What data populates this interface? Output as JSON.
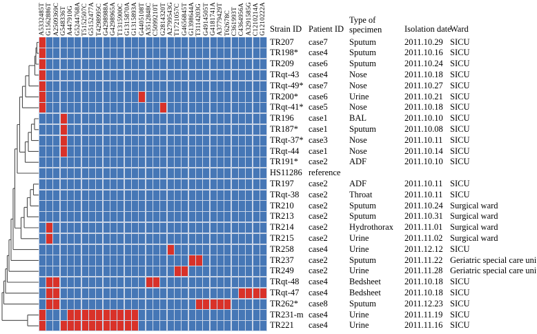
{
  "chart_data": {
    "type": "heatmap",
    "title": "",
    "colors": {
      "present": "#d93229",
      "absent": "#4677b6",
      "grid": "#c9d4e6",
      "dendrogram": "#4a4a4a",
      "text": "#000000"
    },
    "value_encoding": {
      "red": "SNP present",
      "blue": "SNP absent"
    },
    "snp_columns": [
      "A5332485T",
      "G1562886T",
      "A2509369C",
      "G548336T",
      "A447910G",
      "G5244768A",
      "T5152507C",
      "G5152477A",
      "T4298995C",
      "G4298988A",
      "G4298965A",
      "T1315900C",
      "G1315870A",
      "G1315893A",
      "G4405108T",
      "A3512848C",
      "C5099210T",
      "G2814320T",
      "A2799543G",
      "T1721057C",
      "G4656845T",
      "G1398644A",
      "T3114203G",
      "G4914505T",
      "G4181741A",
      "A3779429T",
      "T62678C",
      "C361993T",
      "C4364956A",
      "A3291585G",
      "C1210214A",
      "G1210222A"
    ],
    "table_headers": {
      "strain": "Strain ID",
      "patient": "Patient ID",
      "specimen_l1": "Type of",
      "specimen_l2": "specimen",
      "date": "Isolation date",
      "ward": "Ward"
    },
    "rows": [
      {
        "strain": "TR207",
        "patient": "case7",
        "specimen": "Sputum",
        "date": "2011.10.29",
        "ward": "SICU",
        "red_cols": [
          0
        ]
      },
      {
        "strain": "TR198*",
        "patient": "case4",
        "specimen": "Sputum",
        "date": "2011.10.16",
        "ward": "SICU",
        "red_cols": [
          0
        ]
      },
      {
        "strain": "TR209",
        "patient": "case6",
        "specimen": "Sputum",
        "date": "2011.10.24",
        "ward": "SICU",
        "red_cols": [
          0
        ]
      },
      {
        "strain": "TRqt-43",
        "patient": "case4",
        "specimen": "Nose",
        "date": "2011.10.18",
        "ward": "SICU",
        "red_cols": [
          0
        ]
      },
      {
        "strain": "TRqt-49*",
        "patient": "case7",
        "specimen": "Nose",
        "date": "2011.10.27",
        "ward": "SICU",
        "red_cols": [
          0
        ]
      },
      {
        "strain": "TR200*",
        "patient": "case6",
        "specimen": "Urine",
        "date": "2011.10.21",
        "ward": "SICU",
        "red_cols": [
          0,
          14
        ]
      },
      {
        "strain": "TRqt-41*",
        "patient": "case5",
        "specimen": "Nose",
        "date": "2011.10.18",
        "ward": "SICU",
        "red_cols": [
          0,
          17
        ]
      },
      {
        "strain": "TR196",
        "patient": "case1",
        "specimen": "BAL",
        "date": "2011.10.10",
        "ward": "SICU",
        "red_cols": [
          3
        ]
      },
      {
        "strain": "TR187*",
        "patient": "case1",
        "specimen": "Sputum",
        "date": "2011.10.08",
        "ward": "SICU",
        "red_cols": [
          3
        ]
      },
      {
        "strain": "TRqt-37*",
        "patient": "case3",
        "specimen": "Nose",
        "date": "2011.10.11",
        "ward": "SICU",
        "red_cols": [
          3
        ]
      },
      {
        "strain": "TRqt-44",
        "patient": "case1",
        "specimen": "Nose",
        "date": "2011.10.14",
        "ward": "SICU",
        "red_cols": [
          3
        ]
      },
      {
        "strain": "TR191*",
        "patient": "case2",
        "specimen": "ADF",
        "date": "2011.10.10",
        "ward": "SICU",
        "red_cols": []
      },
      {
        "strain": "HS11286",
        "patient": "reference",
        "specimen": "",
        "date": "",
        "ward": "",
        "red_cols": []
      },
      {
        "strain": "TR197",
        "patient": "case2",
        "specimen": "ADF",
        "date": "2011.10.11",
        "ward": "SICU",
        "red_cols": []
      },
      {
        "strain": "TRqt-38",
        "patient": "case2",
        "specimen": "Throat",
        "date": "2011.10.11",
        "ward": "SICU",
        "red_cols": []
      },
      {
        "strain": "TR210",
        "patient": "case2",
        "specimen": "Sputum",
        "date": "2011.10.24",
        "ward": "Surgical ward",
        "red_cols": []
      },
      {
        "strain": "TR213",
        "patient": "case2",
        "specimen": "Sputum",
        "date": "2011.10.31",
        "ward": "Surgical ward",
        "red_cols": []
      },
      {
        "strain": "TR214",
        "patient": "case2",
        "specimen": "Hydrothorax",
        "date": "2011.11.01",
        "ward": "Surgical ward",
        "red_cols": [
          1
        ]
      },
      {
        "strain": "TR215",
        "patient": "case2",
        "specimen": "Urine",
        "date": "2011.11.02",
        "ward": "Surgical ward",
        "red_cols": [
          1
        ]
      },
      {
        "strain": "TR258",
        "patient": "case4",
        "specimen": "Urine",
        "date": "2011.12.12",
        "ward": "SICU",
        "red_cols": [
          18
        ]
      },
      {
        "strain": "TR237",
        "patient": "case2",
        "specimen": "Sputum",
        "date": "2011.11.22",
        "ward": "Geriatric special care unit",
        "red_cols": [
          21,
          22
        ]
      },
      {
        "strain": "TR249",
        "patient": "case2",
        "specimen": "Urine",
        "date": "2011.11.28",
        "ward": "Geriatric special care unit",
        "red_cols": [
          19,
          20
        ]
      },
      {
        "strain": "TRqt-48",
        "patient": "case4",
        "specimen": "Bedsheet",
        "date": "2011.10.18",
        "ward": "SICU",
        "red_cols": [
          1,
          2,
          15,
          16
        ]
      },
      {
        "strain": "TRqt-47",
        "patient": "case4",
        "specimen": "Bedsheet",
        "date": "2011.10.18",
        "ward": "SICU",
        "red_cols": [
          1,
          2,
          28,
          29,
          30,
          31
        ]
      },
      {
        "strain": "TR262*",
        "patient": "case8",
        "specimen": "Sputum",
        "date": "2011.12.23",
        "ward": "SICU",
        "red_cols": [
          1,
          2,
          22,
          23,
          24,
          25,
          26
        ]
      },
      {
        "strain": "TR231-m",
        "patient": "case4",
        "specimen": "Urine",
        "date": "2011.11.19",
        "ward": "SICU",
        "red_cols": [
          0,
          4,
          5,
          6,
          7,
          8,
          9,
          10,
          11,
          12,
          13
        ]
      },
      {
        "strain": "TR221",
        "patient": "case4",
        "specimen": "Urine",
        "date": "2011.11.16",
        "ward": "SICU",
        "red_cols": [
          0,
          3,
          4,
          5,
          6,
          7,
          8,
          9,
          10,
          11,
          12,
          13
        ]
      }
    ]
  }
}
